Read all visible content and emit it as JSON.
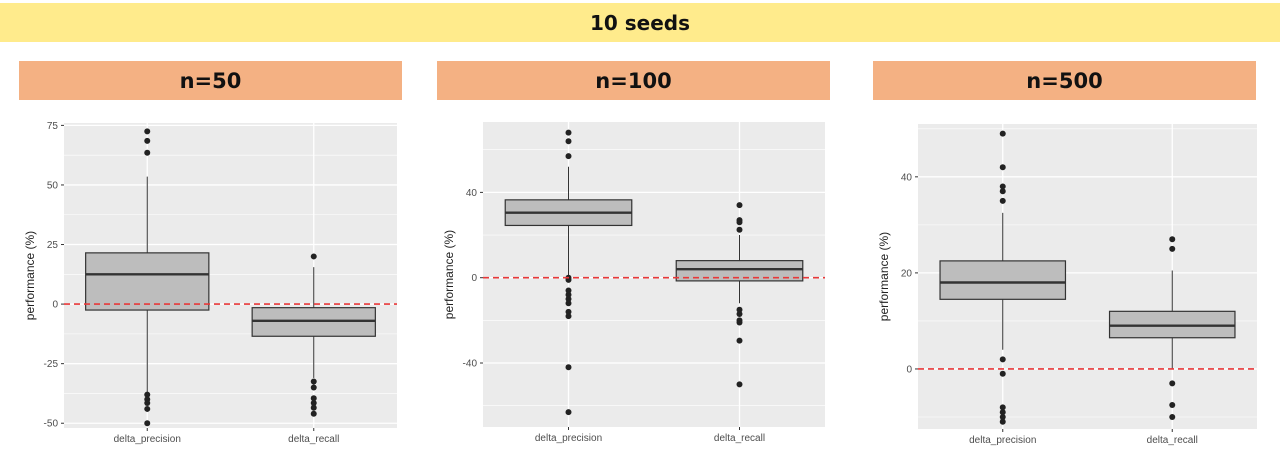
{
  "banner": {
    "title": "10 seeds"
  },
  "panels": [
    {
      "header": "n=50"
    },
    {
      "header": "n=100"
    },
    {
      "header": "n=500"
    }
  ],
  "colors": {
    "panel_bg": "#ebebeb",
    "grid": "#ffffff",
    "box_fill": "#bdbdbd",
    "box_stroke": "#333333",
    "ref_line": "#e8393a",
    "banner": "#ffeb8c",
    "header": "#f4b183"
  },
  "chart_data": [
    {
      "type": "boxplot",
      "title": "n=50",
      "ylabel": "performance (%)",
      "categories": [
        "delta_precision",
        "delta_recall"
      ],
      "ylim": [
        -52,
        76
      ],
      "yticks": [
        -50,
        -25,
        0,
        25,
        50,
        75
      ],
      "ytick_labels": [
        "-50",
        "-25",
        "0",
        "25",
        "50",
        "75"
      ],
      "reference_line": 0,
      "grid": true,
      "boxes": [
        {
          "category": "delta_precision",
          "whisker_low": -37,
          "q1": -2.5,
          "median": 12.5,
          "q3": 21.5,
          "whisker_high": 53.5,
          "outliers": [
            72.5,
            68.5,
            63.5,
            -38,
            -40,
            -41.5,
            -44,
            -50
          ]
        },
        {
          "category": "delta_recall",
          "whisker_low": -31,
          "q1": -13.5,
          "median": -7,
          "q3": -1.5,
          "whisker_high": 15.5,
          "outliers": [
            20,
            -32.5,
            -35,
            -39.5,
            -41.5,
            -43.5,
            -46
          ]
        }
      ]
    },
    {
      "type": "boxplot",
      "title": "n=100",
      "ylabel": "performance (%)",
      "categories": [
        "delta_precision",
        "delta_recall"
      ],
      "ylim": [
        -70,
        73
      ],
      "yticks": [
        -40,
        0,
        40
      ],
      "ytick_labels": [
        "-40",
        "0",
        "40"
      ],
      "reference_line": 0,
      "grid": true,
      "boxes": [
        {
          "category": "delta_precision",
          "whisker_low": 1,
          "q1": 24.5,
          "median": 30.5,
          "q3": 36.5,
          "whisker_high": 52,
          "outliers": [
            68,
            64,
            57,
            0,
            -1,
            -6,
            -8,
            -10,
            -12,
            -16,
            -18,
            -42,
            -63
          ]
        },
        {
          "category": "delta_recall",
          "whisker_low": -12,
          "q1": -1.5,
          "median": 4,
          "q3": 8,
          "whisker_high": 20,
          "outliers": [
            34,
            27,
            26,
            22.5,
            -15,
            -17,
            -20,
            -21,
            -29.5,
            -50
          ]
        }
      ]
    },
    {
      "type": "boxplot",
      "title": "n=500",
      "ylabel": "performance (%)",
      "categories": [
        "delta_precision",
        "delta_recall"
      ],
      "ylim": [
        -12.5,
        51
      ],
      "yticks": [
        0,
        20,
        40
      ],
      "ytick_labels": [
        "0",
        "20",
        "40"
      ],
      "reference_line": 0,
      "grid": true,
      "boxes": [
        {
          "category": "delta_precision",
          "whisker_low": 4,
          "q1": 14.5,
          "median": 18,
          "q3": 22.5,
          "whisker_high": 32.5,
          "outliers": [
            49,
            42,
            38,
            37,
            35,
            2,
            -1,
            -8,
            -9,
            -10,
            -11
          ]
        },
        {
          "category": "delta_recall",
          "whisker_low": 0,
          "q1": 6.5,
          "median": 9,
          "q3": 12,
          "whisker_high": 20.5,
          "outliers": [
            27,
            25,
            -3,
            -7.5,
            -10
          ]
        }
      ]
    }
  ]
}
